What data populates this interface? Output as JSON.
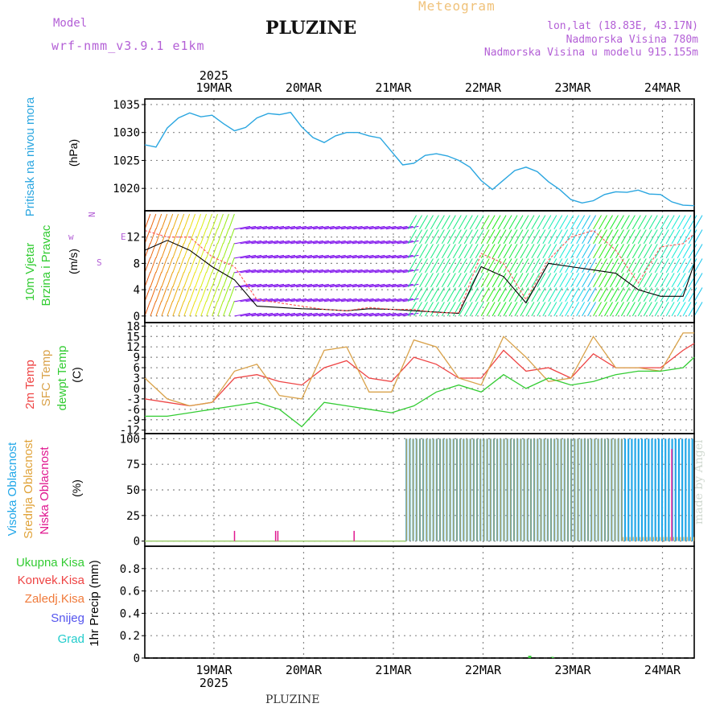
{
  "header": {
    "model_label": "Model",
    "model_run": "wrf-nmm_v3.9.1  e1km",
    "title": "PLUZINE",
    "product": "Meteogram",
    "coords": "lon,lat (18.83E, 43.17N)",
    "elevation": "Nadmorska Visina 780m",
    "model_elevation": "Nadmorska Visina u modelu 915.155m",
    "footer_title": "PLUZINE",
    "credit": "made by Angel"
  },
  "colors": {
    "pressure": "#2aa6e0",
    "temp": "#ee4444",
    "sfc_temp": "#d9a24a",
    "dewpt": "#33cc33",
    "high_cloud": "#22a7e8",
    "mid_cloud": "#e0a33a",
    "low_cloud": "#e01890",
    "axis": "#000000",
    "grid": "#888888"
  },
  "chart_data": [
    {
      "type": "line",
      "id": "pressure",
      "title": "Pritisak na nivou mora",
      "ylabel": "(hPa)",
      "unit": "hPa",
      "ylim": [
        1016,
        1036
      ],
      "yticks": [
        1020,
        1025,
        1030,
        1035
      ],
      "x_dates": [
        "19MAR",
        "20MAR",
        "21MAR",
        "22MAR",
        "23MAR",
        "24MAR"
      ],
      "year": "2025",
      "x": [
        0,
        3,
        6,
        9,
        12,
        15,
        18,
        21,
        24,
        27,
        30,
        33,
        36,
        39,
        42,
        45,
        48,
        51,
        54,
        57,
        60,
        63,
        66,
        69,
        72,
        75,
        78,
        81,
        84,
        87,
        90,
        93,
        96,
        99,
        102,
        105,
        108,
        111,
        114,
        117,
        120,
        123,
        126,
        129,
        132,
        135,
        138,
        141,
        144,
        147
      ],
      "series": [
        {
          "values": [
            1027.8,
            1027.4,
            1030.8,
            1032.6,
            1033.5,
            1032.8,
            1033.1,
            1031.6,
            1030.3,
            1030.9,
            1032.6,
            1033.4,
            1033.2,
            1033.6,
            1031.0,
            1029.1,
            1028.2,
            1029.4,
            1030.0,
            1030.0,
            1029.4,
            1029.0,
            1026.6,
            1024.2,
            1024.5,
            1025.9,
            1026.2,
            1025.8,
            1025.0,
            1023.8,
            1021.4,
            1019.8,
            1021.5,
            1023.2,
            1023.8,
            1023.0,
            1021.2,
            1019.8,
            1018.0,
            1017.4,
            1017.8,
            1018.9,
            1019.4,
            1019.3,
            1019.7,
            1019.0,
            1018.9,
            1017.6,
            1017.0,
            1016.9
          ]
        }
      ]
    },
    {
      "type": "line",
      "id": "wind",
      "title": "10m Vjetar Brzina i Pravac",
      "ylabel": "(m/s)",
      "unit": "m/s",
      "ylim": [
        -1,
        16
      ],
      "yticks": [
        0,
        4,
        8,
        12
      ],
      "compass": [
        "N",
        "w",
        "E",
        "S"
      ],
      "x": [
        0,
        6,
        12,
        18,
        24,
        30,
        36,
        42,
        48,
        54,
        60,
        66,
        72,
        78,
        84,
        90,
        96,
        102,
        108,
        114,
        120,
        126,
        132,
        138,
        144,
        147
      ],
      "series": [
        {
          "name": "wind_speed",
          "values": [
            10,
            11.5,
            10,
            7.5,
            5.5,
            1.5,
            1.3,
            1.1,
            1.0,
            0.8,
            1.1,
            1.0,
            0.8,
            0.6,
            0.4,
            7.5,
            6.0,
            2.0,
            8.0,
            7.5,
            7.0,
            6.5,
            4.0,
            3.0,
            3.0,
            8.0
          ]
        },
        {
          "name": "wind_gust",
          "values": [
            13,
            12,
            12,
            9,
            7.5,
            2.5,
            2.0,
            1.5,
            1.0,
            0.8,
            1.3,
            1.0,
            1.0,
            0.5,
            0.5,
            9.5,
            8.0,
            2.5,
            8.5,
            12.0,
            13.0,
            10.0,
            5.0,
            10.5,
            11.0,
            12.5
          ]
        }
      ]
    },
    {
      "type": "line",
      "id": "temperature",
      "title": "2m Temp / SFC Temp / dewpt Temp",
      "ylabel": "(C)",
      "unit": "C",
      "ylim": [
        -13,
        19
      ],
      "yticks": [
        -12,
        -9,
        -6,
        -3,
        0,
        3,
        6,
        9,
        12,
        15,
        18
      ],
      "x": [
        0,
        6,
        12,
        18,
        24,
        30,
        36,
        42,
        48,
        54,
        60,
        66,
        72,
        78,
        84,
        90,
        96,
        102,
        108,
        114,
        120,
        126,
        132,
        138,
        144,
        147
      ],
      "series": [
        {
          "name": "2m Temp",
          "values": [
            -3,
            -4,
            -5,
            -4,
            3,
            4,
            2,
            1,
            6,
            8,
            3,
            2,
            9,
            7,
            3,
            3,
            11,
            5,
            6,
            3,
            10,
            6,
            6,
            6,
            11,
            13
          ]
        },
        {
          "name": "SFC Temp",
          "values": [
            3,
            -3,
            -5,
            -4,
            5,
            7,
            -2,
            -3,
            11,
            12,
            -1,
            -1,
            14,
            12,
            3,
            1,
            15,
            9,
            2,
            3,
            15,
            6,
            6,
            5,
            16,
            16
          ]
        },
        {
          "name": "dewpt Temp",
          "values": [
            -8,
            -8,
            -7,
            -6,
            -5,
            -4,
            -6,
            -11,
            -4,
            -5,
            -6,
            -7,
            -5,
            -1,
            1,
            -1,
            4,
            0,
            3,
            1,
            2,
            4,
            5,
            5,
            6,
            9
          ]
        }
      ]
    },
    {
      "type": "bar",
      "id": "clouds",
      "title": "Visoka Oblacnost / Srednja Oblacnost / Niska Oblacnost",
      "ylabel": "(%)",
      "unit": "%",
      "ylim": [
        -5,
        105
      ],
      "yticks": [
        0,
        25,
        50,
        75,
        100
      ],
      "series": [
        {
          "name": "Visoka Oblacnost",
          "segments": [
            [
              0,
              70,
              0
            ],
            [
              70,
              147,
              100
            ]
          ]
        },
        {
          "name": "Srednja Oblacnost",
          "segments": [
            [
              70,
              128,
              100
            ],
            [
              128,
              147,
              4
            ]
          ]
        },
        {
          "name": "Niska Oblacnost",
          "events": [
            [
              24,
              10
            ],
            [
              35,
              10
            ],
            [
              35.6,
              10
            ],
            [
              56,
              10
            ],
            [
              141,
              90
            ]
          ]
        }
      ]
    },
    {
      "type": "bar",
      "id": "precipitation",
      "title": "1hr Precip",
      "ylabel": "(mm)",
      "unit": "mm",
      "ylim": [
        0,
        1
      ],
      "yticks": [
        0,
        0.2,
        0.4,
        0.6,
        0.8
      ],
      "series": [
        {
          "name": "Ukupna Kisa",
          "events": [
            [
              103,
              0.02
            ],
            [
              109,
              0.01
            ]
          ]
        },
        {
          "name": "Konvek.Kisa",
          "events": []
        },
        {
          "name": "Zaledj.Kisa",
          "events": []
        },
        {
          "name": "Snijeg",
          "events": []
        },
        {
          "name": "Grad",
          "events": []
        }
      ]
    }
  ],
  "labels": {
    "pressure": "Pritisak na nivou mora",
    "pressure_unit": "(hPa)",
    "wind_1": "10m Vjetar",
    "wind_2": "Brzina i Pravac",
    "wind_unit": "(m/s)",
    "t2m": "2m Temp",
    "tsfc": "SFC Temp",
    "tdew": "dewpt Temp",
    "temp_unit": "(C)",
    "cloud_high": "Visoka Oblacnost",
    "cloud_mid": "Srednja Oblacnost",
    "cloud_low": "Niska Oblacnost",
    "cloud_unit": "(%)",
    "precip_total": "Ukupna Kisa",
    "precip_conv": "Konvek.Kisa",
    "precip_frz": "Zaledj.Kisa",
    "precip_snow": "Snijeg",
    "precip_hail": "Grad",
    "precip_axis": "1hr Precip (mm)"
  }
}
